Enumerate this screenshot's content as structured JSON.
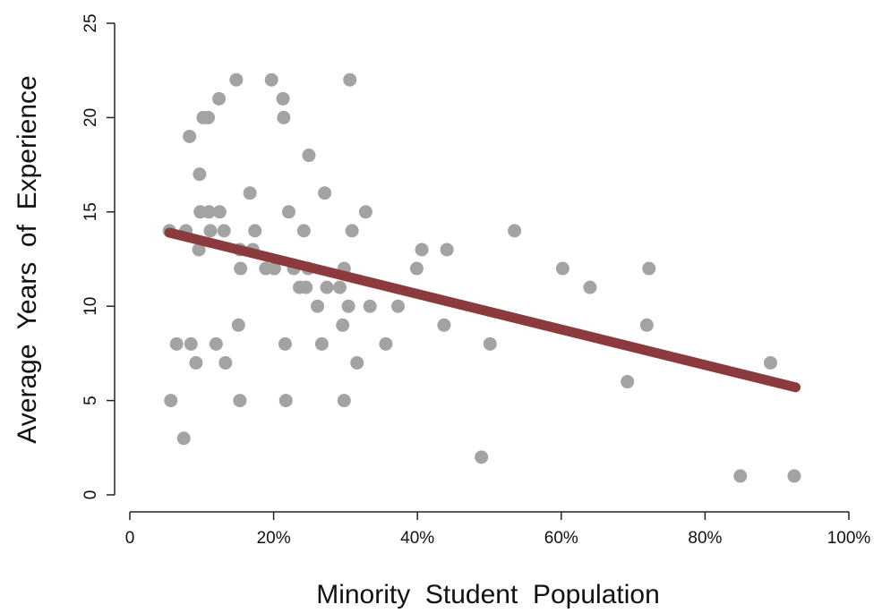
{
  "chart_data": {
    "type": "scatter",
    "title": "",
    "xlabel": "Minority  Student  Population",
    "ylabel": "Average  Years  of  Experience",
    "xlim": [
      0,
      100
    ],
    "ylim": [
      0,
      25
    ],
    "xticks": [
      0,
      20,
      40,
      60,
      80,
      100
    ],
    "xtick_labels": [
      "0",
      "20%",
      "40%",
      "60%",
      "80%",
      "100%"
    ],
    "yticks": [
      0,
      5,
      10,
      15,
      20,
      25
    ],
    "ytick_labels": [
      "0",
      "5",
      "10",
      "15",
      "20",
      "25"
    ],
    "grid": false,
    "legend": "none",
    "colors": {
      "points": "#a3a3a3",
      "fit_line": "#8b3a3e",
      "axis": "#222222"
    },
    "series": [
      {
        "type": "scatter",
        "points": [
          [
            5.5,
            14
          ],
          [
            5.7,
            5
          ],
          [
            6.5,
            8
          ],
          [
            7.5,
            3
          ],
          [
            7.8,
            14
          ],
          [
            8.3,
            19
          ],
          [
            8.5,
            8
          ],
          [
            9.2,
            7
          ],
          [
            9.6,
            13
          ],
          [
            9.7,
            17
          ],
          [
            9.8,
            15
          ],
          [
            10.2,
            20
          ],
          [
            10.9,
            20
          ],
          [
            11.0,
            15
          ],
          [
            11.2,
            14
          ],
          [
            12.0,
            8
          ],
          [
            12.4,
            21
          ],
          [
            12.5,
            15
          ],
          [
            13.1,
            14
          ],
          [
            13.3,
            7
          ],
          [
            14.8,
            22
          ],
          [
            15.1,
            9
          ],
          [
            15.3,
            13
          ],
          [
            15.4,
            12
          ],
          [
            15.3,
            5
          ],
          [
            16.7,
            16
          ],
          [
            17.1,
            13
          ],
          [
            17.4,
            14
          ],
          [
            18.9,
            12
          ],
          [
            19.7,
            22
          ],
          [
            20.1,
            12
          ],
          [
            21.3,
            21
          ],
          [
            21.4,
            20
          ],
          [
            21.6,
            8
          ],
          [
            21.7,
            5
          ],
          [
            22.1,
            15
          ],
          [
            22.8,
            12
          ],
          [
            23.6,
            11
          ],
          [
            24.2,
            14
          ],
          [
            24.5,
            11
          ],
          [
            24.8,
            12
          ],
          [
            24.9,
            18
          ],
          [
            26.1,
            10
          ],
          [
            26.7,
            8
          ],
          [
            27.1,
            16
          ],
          [
            27.4,
            11
          ],
          [
            29.2,
            11
          ],
          [
            29.6,
            9
          ],
          [
            29.8,
            12
          ],
          [
            29.8,
            5
          ],
          [
            30.4,
            10
          ],
          [
            30.6,
            22
          ],
          [
            30.9,
            14
          ],
          [
            31.6,
            7
          ],
          [
            32.8,
            15
          ],
          [
            33.4,
            10
          ],
          [
            35.6,
            8
          ],
          [
            37.3,
            10
          ],
          [
            39.9,
            12
          ],
          [
            40.6,
            13
          ],
          [
            43.7,
            9
          ],
          [
            44.1,
            13
          ],
          [
            48.9,
            2
          ],
          [
            50.1,
            8
          ],
          [
            53.5,
            14
          ],
          [
            60.2,
            12
          ],
          [
            64.0,
            11
          ],
          [
            69.2,
            6
          ],
          [
            71.9,
            9
          ],
          [
            72.2,
            12
          ],
          [
            84.9,
            1
          ],
          [
            89.1,
            7
          ],
          [
            92.4,
            1
          ]
        ]
      },
      {
        "type": "line",
        "points": [
          [
            5.5,
            13.9
          ],
          [
            92.6,
            5.7
          ]
        ]
      }
    ]
  }
}
